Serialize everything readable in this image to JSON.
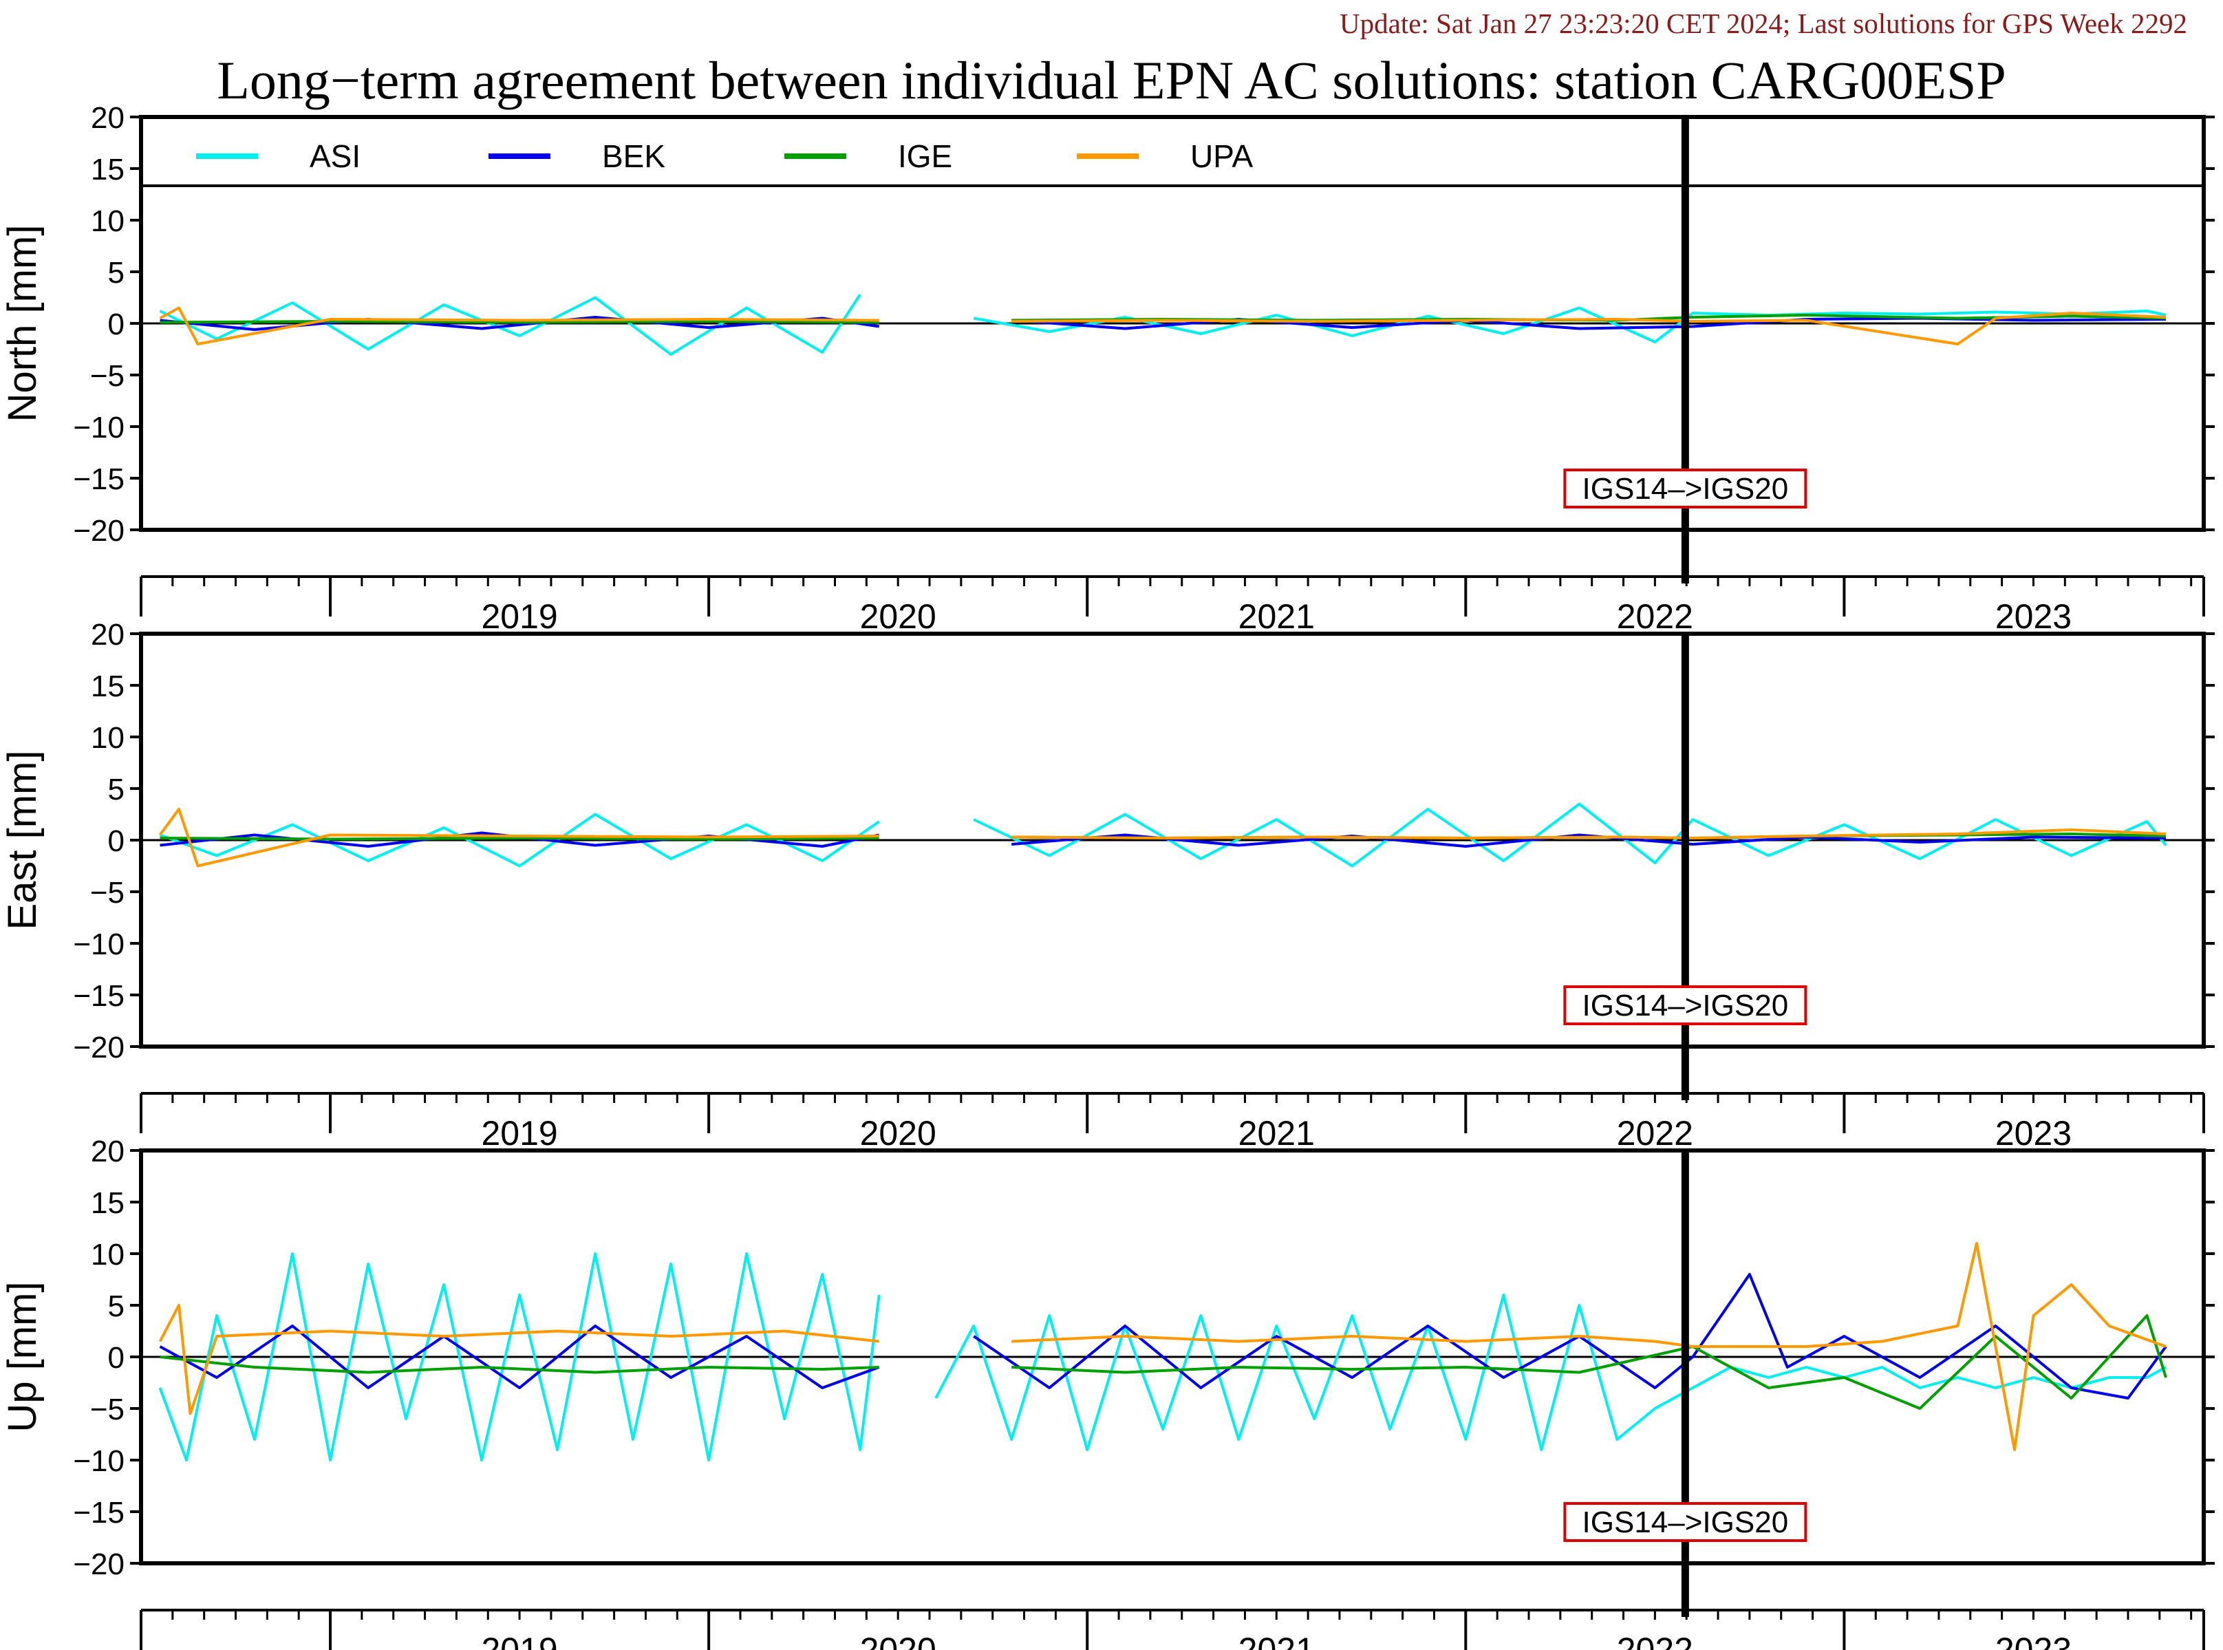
{
  "header": {
    "update": "Update: Sat Jan 27 23:23:20 CET 2024; Last solutions for GPS Week 2292",
    "title": "Long−term agreement between individual EPN AC solutions: station CARG00ESP"
  },
  "chart_data": [
    {
      "type": "line",
      "panel": "north",
      "ylabel": "North [mm]",
      "ylim": [
        -20,
        20
      ],
      "yticks": [
        20,
        15,
        10,
        5,
        0,
        -5,
        -10,
        -15,
        -20
      ],
      "ytick_labels": [
        "20",
        "15",
        "10",
        "5",
        "0",
        "−5",
        "−10",
        "−15",
        "−20"
      ],
      "xlim": [
        2018.5,
        2023.95
      ],
      "year_labels": [
        "2019",
        "2020",
        "2021",
        "2022",
        "2023"
      ],
      "grid": false,
      "legend": "top-left, inside plot",
      "annotation": {
        "text": "IGS14–>IGS20",
        "x": 2022.58
      },
      "series": [
        {
          "name": "ASI",
          "color": "#00f0f0",
          "x": [
            2018.55,
            2018.7,
            2018.9,
            2019.1,
            2019.3,
            2019.5,
            2019.7,
            2019.9,
            2020.1,
            2020.3,
            2020.4,
            2020.5,
            2020.7,
            2020.9,
            2021.1,
            2021.3,
            2021.5,
            2021.7,
            2021.9,
            2022.1,
            2022.3,
            2022.5,
            2022.6,
            2022.8,
            2023.0,
            2023.2,
            2023.4,
            2023.6,
            2023.8,
            2023.85
          ],
          "values": [
            1.2,
            -1.5,
            2.0,
            -2.5,
            1.8,
            -1.2,
            2.5,
            -3.0,
            1.5,
            -2.8,
            2.8,
            null,
            0.5,
            -0.8,
            0.6,
            -1.0,
            0.8,
            -1.2,
            0.7,
            -1.0,
            1.5,
            -1.8,
            1.0,
            0.8,
            1.0,
            0.9,
            1.1,
            0.9,
            1.2,
            0.8
          ]
        },
        {
          "name": "BEK",
          "color": "#0000ee",
          "x": [
            2018.55,
            2018.8,
            2019.1,
            2019.4,
            2019.7,
            2020.0,
            2020.3,
            2020.45,
            2020.5,
            2020.8,
            2021.1,
            2021.4,
            2021.7,
            2022.0,
            2022.3,
            2022.6,
            2022.9,
            2023.2,
            2023.5,
            2023.85
          ],
          "values": [
            0.3,
            -0.6,
            0.4,
            -0.5,
            0.6,
            -0.4,
            0.5,
            -0.3,
            null,
            0.3,
            -0.5,
            0.4,
            -0.4,
            0.3,
            -0.5,
            -0.3,
            0.4,
            0.5,
            0.3,
            0.4
          ]
        },
        {
          "name": "IGE",
          "color": "#00a000",
          "x": [
            2018.55,
            2019.0,
            2019.5,
            2020.0,
            2020.45,
            2020.5,
            2020.8,
            2021.2,
            2021.6,
            2022.0,
            2022.4,
            2022.6,
            2022.9,
            2023.3,
            2023.6,
            2023.85
          ],
          "values": [
            0.1,
            0.2,
            0.1,
            0.2,
            0.1,
            null,
            0.3,
            0.4,
            0.3,
            0.4,
            0.3,
            0.6,
            0.8,
            0.5,
            0.7,
            0.5
          ]
        },
        {
          "name": "UPA",
          "color": "#ff9900",
          "x": [
            2018.55,
            2018.6,
            2018.65,
            2019.0,
            2019.5,
            2020.0,
            2020.45,
            2020.5,
            2020.8,
            2021.2,
            2021.6,
            2022.0,
            2022.4,
            2022.6,
            2022.9,
            2023.3,
            2023.4,
            2023.6,
            2023.85
          ],
          "values": [
            0.5,
            1.5,
            -2.0,
            0.4,
            0.3,
            0.4,
            0.3,
            null,
            0.2,
            0.3,
            0.2,
            0.3,
            0.4,
            0.2,
            0.3,
            -2.0,
            0.5,
            1.0,
            0.6
          ]
        }
      ]
    },
    {
      "type": "line",
      "panel": "east",
      "ylabel": "East [mm]",
      "ylim": [
        -20,
        20
      ],
      "yticks": [
        20,
        15,
        10,
        5,
        0,
        -5,
        -10,
        -15,
        -20
      ],
      "ytick_labels": [
        "20",
        "15",
        "10",
        "5",
        "0",
        "−5",
        "−10",
        "−15",
        "−20"
      ],
      "xlim": [
        2018.5,
        2023.95
      ],
      "year_labels": [
        "2019",
        "2020",
        "2021",
        "2022",
        "2023"
      ],
      "grid": false,
      "annotation": {
        "text": "IGS14–>IGS20",
        "x": 2022.58
      },
      "series": [
        {
          "name": "ASI",
          "color": "#00f0f0",
          "x": [
            2018.55,
            2018.7,
            2018.9,
            2019.1,
            2019.3,
            2019.5,
            2019.7,
            2019.9,
            2020.1,
            2020.3,
            2020.45,
            2020.5,
            2020.7,
            2020.9,
            2021.1,
            2021.3,
            2021.5,
            2021.7,
            2021.9,
            2022.1,
            2022.3,
            2022.5,
            2022.6,
            2022.8,
            2023.0,
            2023.2,
            2023.4,
            2023.6,
            2023.8,
            2023.85
          ],
          "values": [
            0.5,
            -1.5,
            1.5,
            -2.0,
            1.2,
            -2.5,
            2.5,
            -1.8,
            1.5,
            -2.0,
            1.8,
            null,
            2.0,
            -1.5,
            2.5,
            -1.8,
            2.0,
            -2.5,
            3.0,
            -2.0,
            3.5,
            -2.2,
            2.0,
            -1.5,
            1.5,
            -1.8,
            2.0,
            -1.5,
            1.8,
            -0.5
          ]
        },
        {
          "name": "BEK",
          "color": "#0000ee",
          "x": [
            2018.55,
            2018.8,
            2019.1,
            2019.4,
            2019.7,
            2020.0,
            2020.3,
            2020.45,
            2020.5,
            2020.8,
            2021.1,
            2021.4,
            2021.7,
            2022.0,
            2022.3,
            2022.6,
            2022.9,
            2023.2,
            2023.5,
            2023.85
          ],
          "values": [
            -0.5,
            0.5,
            -0.6,
            0.7,
            -0.5,
            0.4,
            -0.6,
            0.5,
            null,
            -0.4,
            0.5,
            -0.5,
            0.4,
            -0.6,
            0.5,
            -0.4,
            0.3,
            -0.2,
            0.3,
            0.2
          ]
        },
        {
          "name": "IGE",
          "color": "#00a000",
          "x": [
            2018.55,
            2019.0,
            2019.5,
            2020.0,
            2020.45,
            2020.5,
            2020.8,
            2021.2,
            2021.6,
            2022.0,
            2022.4,
            2022.6,
            2022.9,
            2023.3,
            2023.6,
            2023.85
          ],
          "values": [
            0.2,
            0.1,
            0.2,
            0.1,
            0.2,
            null,
            0.3,
            0.2,
            0.3,
            0.2,
            0.3,
            0.2,
            0.4,
            0.5,
            0.6,
            0.4
          ]
        },
        {
          "name": "UPA",
          "color": "#ff9900",
          "x": [
            2018.55,
            2018.6,
            2018.65,
            2019.0,
            2019.5,
            2020.0,
            2020.45,
            2020.5,
            2020.8,
            2021.2,
            2021.6,
            2022.0,
            2022.4,
            2022.6,
            2022.9,
            2023.3,
            2023.6,
            2023.85
          ],
          "values": [
            0.5,
            3.0,
            -2.5,
            0.5,
            0.4,
            0.3,
            0.4,
            null,
            0.3,
            0.2,
            0.3,
            0.2,
            0.3,
            0.2,
            0.4,
            0.6,
            1.0,
            0.6
          ]
        }
      ]
    },
    {
      "type": "line",
      "panel": "up",
      "ylabel": "Up [mm]",
      "ylim": [
        -20,
        20
      ],
      "yticks": [
        20,
        15,
        10,
        5,
        0,
        -5,
        -10,
        -15,
        -20
      ],
      "ytick_labels": [
        "20",
        "15",
        "10",
        "5",
        "0",
        "−5",
        "−10",
        "−15",
        "−20"
      ],
      "xlim": [
        2018.5,
        2023.95
      ],
      "year_labels": [
        "2019",
        "2020",
        "2021",
        "2022",
        "2023"
      ],
      "grid": false,
      "annotation": {
        "text": "IGS14–>IGS20",
        "x": 2022.58
      },
      "series": [
        {
          "name": "ASI",
          "color": "#00f0f0",
          "x": [
            2018.55,
            2018.62,
            2018.7,
            2018.8,
            2018.9,
            2019.0,
            2019.1,
            2019.2,
            2019.3,
            2019.4,
            2019.5,
            2019.6,
            2019.7,
            2019.8,
            2019.9,
            2020.0,
            2020.1,
            2020.2,
            2020.3,
            2020.4,
            2020.45,
            2020.5,
            2020.6,
            2020.7,
            2020.8,
            2020.9,
            2021.0,
            2021.1,
            2021.2,
            2021.3,
            2021.4,
            2021.5,
            2021.6,
            2021.7,
            2021.8,
            2021.9,
            2022.0,
            2022.1,
            2022.2,
            2022.3,
            2022.4,
            2022.5,
            2022.6,
            2022.7,
            2022.8,
            2022.9,
            2023.0,
            2023.1,
            2023.2,
            2023.3,
            2023.4,
            2023.5,
            2023.6,
            2023.7,
            2023.8,
            2023.85
          ],
          "values": [
            -3,
            -10,
            4,
            -8,
            10,
            -10,
            9,
            -6,
            7,
            -10,
            6,
            -9,
            10,
            -8,
            9,
            -10,
            10,
            -6,
            8,
            -9,
            6,
            null,
            -4,
            3,
            -8,
            4,
            -9,
            3,
            -7,
            4,
            -8,
            3,
            -6,
            4,
            -7,
            3,
            -8,
            6,
            -9,
            5,
            -8,
            -5,
            -3,
            -1,
            -2,
            -1,
            -2,
            -1,
            -3,
            -2,
            -3,
            -2,
            -3,
            -2,
            -2,
            -1
          ]
        },
        {
          "name": "BEK",
          "color": "#0000ee",
          "x": [
            2018.55,
            2018.7,
            2018.9,
            2019.1,
            2019.3,
            2019.5,
            2019.7,
            2019.9,
            2020.1,
            2020.3,
            2020.45,
            2020.5,
            2020.7,
            2020.9,
            2021.1,
            2021.3,
            2021.5,
            2021.7,
            2021.9,
            2022.1,
            2022.3,
            2022.5,
            2022.6,
            2022.75,
            2022.85,
            2023.0,
            2023.2,
            2023.4,
            2023.6,
            2023.75,
            2023.85
          ],
          "values": [
            1,
            -2,
            3,
            -3,
            2,
            -3,
            3,
            -2,
            2,
            -3,
            -1,
            null,
            2,
            -3,
            3,
            -3,
            2,
            -2,
            3,
            -2,
            2,
            -3,
            0,
            8,
            -1,
            2,
            -2,
            3,
            -3,
            -4,
            1
          ]
        },
        {
          "name": "IGE",
          "color": "#00a000",
          "x": [
            2018.55,
            2018.8,
            2019.1,
            2019.4,
            2019.7,
            2020.0,
            2020.3,
            2020.45,
            2020.5,
            2020.8,
            2021.1,
            2021.4,
            2021.7,
            2022.0,
            2022.3,
            2022.6,
            2022.8,
            2023.0,
            2023.2,
            2023.4,
            2023.6,
            2023.8,
            2023.85
          ],
          "values": [
            0,
            -1,
            -1.5,
            -1,
            -1.5,
            -1,
            -1.2,
            -1,
            null,
            -1,
            -1.5,
            -1,
            -1.2,
            -1,
            -1.5,
            1,
            -3,
            -2,
            -5,
            2,
            -4,
            4,
            -2
          ]
        },
        {
          "name": "UPA",
          "color": "#ff9900",
          "x": [
            2018.55,
            2018.6,
            2018.63,
            2018.7,
            2019.0,
            2019.3,
            2019.6,
            2019.9,
            2020.2,
            2020.45,
            2020.5,
            2020.8,
            2021.1,
            2021.4,
            2021.7,
            2022.0,
            2022.3,
            2022.5,
            2022.6,
            2022.9,
            2023.1,
            2023.3,
            2023.35,
            2023.45,
            2023.5,
            2023.6,
            2023.7,
            2023.85
          ],
          "values": [
            1.5,
            5,
            -5.5,
            2,
            2.5,
            2,
            2.5,
            2,
            2.5,
            1.5,
            null,
            1.5,
            2,
            1.5,
            2,
            1.5,
            2,
            1.5,
            1,
            1,
            1.5,
            3,
            11,
            -9,
            4,
            7,
            3,
            1
          ]
        }
      ]
    }
  ]
}
